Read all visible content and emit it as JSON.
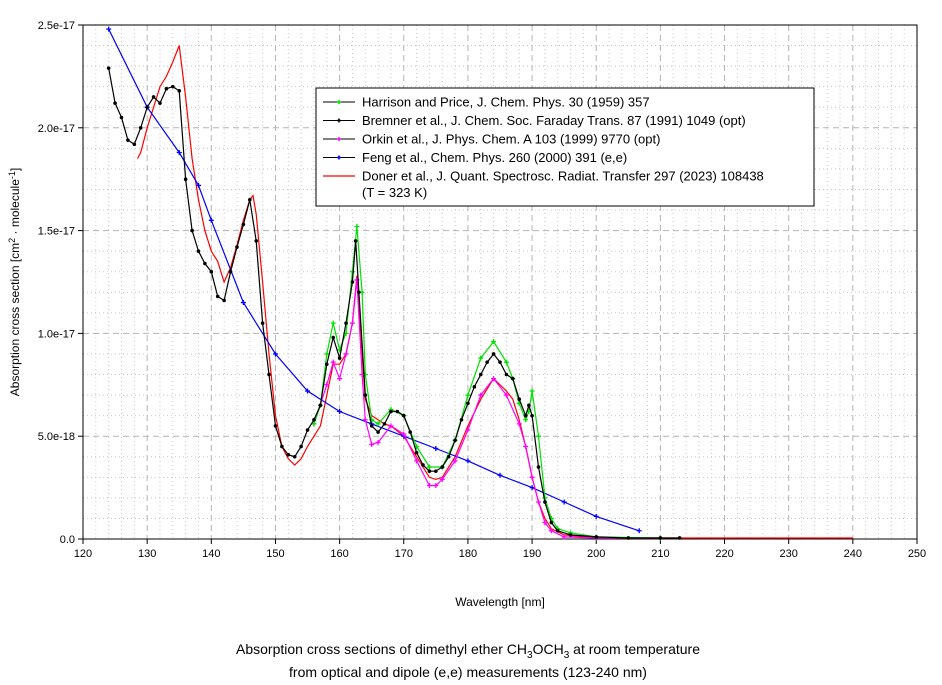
{
  "chart_data": {
    "type": "line",
    "title_lines": [
      "Absorption cross sections of dimethyl ether CH3OCH3 at room temperature",
      "from optical and dipole (e,e) measurements (123-240 nm)"
    ],
    "title_parts": {
      "pre": "Absorption cross sections of dimethyl ether CH",
      "s1": "3",
      "mid": "OCH",
      "s2": "3",
      "post": " at room temperature",
      "line2": "from optical and dipole (e,e) measurements (123-240 nm)"
    },
    "xlabel": "Wavelength [nm]",
    "ylabel": {
      "pre": "Absorption cross section [cm",
      "sup1": "2",
      "mid": " · molecule",
      "sup2": "-1",
      "post": "]"
    },
    "xlim": [
      120,
      250
    ],
    "ylim": [
      0,
      2.5e-17
    ],
    "y_value_scale": 1e-18,
    "x_ticks": [
      "120",
      "130",
      "140",
      "150",
      "160",
      "170",
      "180",
      "190",
      "200",
      "210",
      "220",
      "230",
      "240",
      "250"
    ],
    "y_ticks": [
      {
        "v": 0,
        "label": "0.0"
      },
      {
        "v": 5,
        "label": "5.0e-18"
      },
      {
        "v": 10,
        "label": "1.0e-17"
      },
      {
        "v": 15,
        "label": "1.5e-17"
      },
      {
        "v": 20,
        "label": "2.0e-17"
      },
      {
        "v": 25,
        "label": "2.5e-17"
      }
    ],
    "grid": true,
    "legend_position": "top-right",
    "series": [
      {
        "name": "Harrison and Price, J. Chem. Phys. 30 (1959) 357",
        "color": "#00e000",
        "marker": true,
        "x": [
          156,
          157,
          158,
          159,
          160,
          161,
          162,
          162.7,
          163.5,
          164,
          165,
          166,
          168,
          170,
          172,
          174,
          176,
          178,
          180,
          182,
          184,
          186,
          187,
          188,
          189,
          189.5,
          190,
          191,
          192,
          193,
          194,
          196,
          200,
          210
        ],
        "y": [
          5.6,
          6.5,
          9,
          10.5,
          9.2,
          10,
          13,
          15.2,
          12,
          8,
          5.8,
          5.6,
          6.3,
          6.0,
          4.5,
          3.5,
          3.5,
          4.8,
          7.0,
          8.8,
          9.6,
          8.6,
          7.8,
          6.6,
          5.8,
          6.2,
          7.2,
          5.0,
          2.0,
          1.0,
          0.5,
          0.3,
          0.1,
          0.05
        ]
      },
      {
        "name": "Bremner et al., J. Chem. Soc. Faraday Trans. 87 (1991) 1049 (opt)",
        "color": "#000000",
        "marker": true,
        "x": [
          124,
          125,
          126,
          127,
          128,
          129,
          130,
          131,
          132,
          133,
          134,
          135,
          136,
          137,
          138,
          139,
          140,
          141,
          142,
          143,
          144,
          145,
          146,
          147,
          148,
          149,
          150,
          151,
          152,
          153,
          154,
          155,
          156,
          157,
          158,
          159,
          160,
          161,
          162,
          162.5,
          163,
          164,
          165,
          166,
          167,
          168,
          169,
          170,
          171,
          172,
          173,
          174,
          175,
          176,
          177,
          178,
          179,
          180,
          181,
          182,
          183,
          184,
          185,
          186,
          187,
          188,
          189,
          189.5,
          190,
          191,
          192,
          193,
          194,
          196,
          200,
          205,
          210,
          213
        ],
        "y": [
          22.9,
          21.2,
          20.5,
          19.4,
          19.2,
          20.0,
          21.0,
          21.5,
          21.2,
          21.9,
          22.0,
          21.8,
          17.5,
          15.0,
          14.0,
          13.4,
          13.0,
          11.8,
          11.6,
          13.0,
          14.2,
          15.3,
          16.5,
          14.5,
          10.5,
          8.0,
          5.5,
          4.5,
          4.1,
          4.0,
          4.5,
          5.3,
          5.8,
          6.5,
          8.5,
          9.8,
          8.8,
          10.5,
          12.5,
          14.5,
          12.0,
          7.0,
          5.5,
          5.2,
          5.6,
          6.2,
          6.2,
          6.0,
          5.2,
          4.2,
          3.6,
          3.3,
          3.3,
          3.5,
          4.0,
          4.8,
          5.8,
          6.6,
          7.4,
          8.0,
          8.6,
          9.0,
          8.6,
          8.0,
          7.8,
          6.8,
          6.0,
          6.5,
          6.0,
          3.5,
          1.8,
          0.8,
          0.4,
          0.2,
          0.1,
          0.05,
          0.05,
          0.05
        ]
      },
      {
        "name": "Orkin et al., J. Phys. Chem. A 103 (1999) 9770 (opt)",
        "color": "#ff00ff",
        "marker": true,
        "x": [
          156,
          158,
          159,
          160,
          161,
          162,
          162.7,
          163.5,
          164,
          165,
          166,
          168,
          170,
          172,
          174,
          175,
          176,
          178,
          180,
          182,
          184,
          186,
          188,
          189,
          190,
          191,
          192,
          193,
          195,
          200,
          210
        ],
        "y": [
          5.6,
          7.5,
          8.6,
          7.8,
          9,
          10.5,
          12.6,
          8,
          5.8,
          4.6,
          4.7,
          5.5,
          5.1,
          3.8,
          2.6,
          2.6,
          2.9,
          3.8,
          5.3,
          7.0,
          7.8,
          7.0,
          5.6,
          4.5,
          3.0,
          1.8,
          0.8,
          0.4,
          0.1,
          0.05,
          0.05
        ]
      },
      {
        "name": "Feng et al., Chem. Phys. 260 (2000) 391 (e,e)",
        "color": "#0000ff",
        "marker": true,
        "x": [
          124,
          130,
          135,
          138,
          140,
          145,
          150,
          155,
          160,
          165,
          170,
          175,
          180,
          185,
          190,
          195,
          200,
          206.7
        ],
        "y": [
          24.8,
          21.0,
          18.8,
          17.2,
          15.5,
          11.5,
          9.0,
          7.2,
          6.2,
          5.6,
          5.0,
          4.4,
          3.8,
          3.1,
          2.5,
          1.8,
          1.1,
          0.4
        ]
      },
      {
        "name": "Doner et al., J. Quant. Spectrosc. Radiat. Transfer 297 (2023) 108438",
        "name_line2": "(T = 323 K)",
        "color": "#ff0000",
        "marker": false,
        "x": [
          128.5,
          129,
          130,
          131,
          132,
          133,
          134,
          135,
          136,
          137,
          138,
          139,
          140,
          141,
          142,
          143,
          144,
          145,
          146,
          146.5,
          147,
          148,
          149,
          150,
          151,
          152,
          153,
          154,
          155,
          156,
          157,
          158,
          159,
          160,
          161,
          162,
          162.7,
          163.5,
          164,
          165,
          167,
          168,
          170,
          172,
          174,
          175,
          176,
          178,
          180,
          182,
          184,
          186,
          187,
          188,
          189,
          190,
          191,
          192,
          193,
          195,
          200,
          240
        ],
        "y": [
          18.5,
          18.8,
          20.0,
          21.0,
          22.0,
          22.5,
          23.2,
          24.0,
          21.5,
          18.5,
          16.5,
          15.0,
          14.0,
          13.5,
          12.5,
          13.2,
          14.3,
          15.5,
          16.5,
          16.7,
          15.8,
          12.5,
          9.0,
          6.0,
          4.5,
          3.9,
          3.6,
          3.9,
          4.5,
          5.0,
          5.5,
          7.0,
          8.5,
          8.5,
          9.0,
          10.5,
          12.8,
          9.0,
          6.8,
          6.0,
          5.6,
          5.5,
          5.0,
          4.0,
          3.0,
          2.9,
          3.0,
          4.0,
          5.5,
          6.8,
          7.8,
          7.2,
          6.8,
          5.8,
          4.5,
          3.0,
          1.8,
          1.0,
          0.5,
          0.2,
          0.05,
          0.05
        ]
      }
    ]
  }
}
